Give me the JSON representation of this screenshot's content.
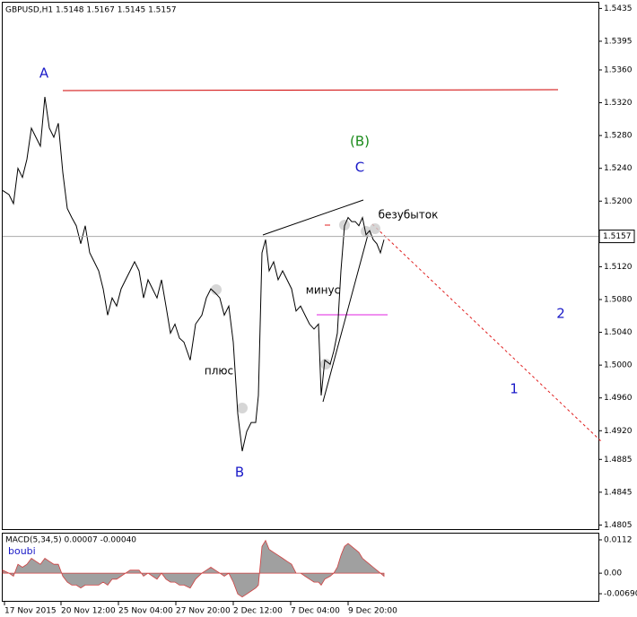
{
  "chart_data": [
    {
      "type": "line",
      "title": "GBPUSD,H1  1.5148 1.5167 1.5145 1.5157",
      "color": "#000000",
      "wave_labels": [
        "A",
        "B",
        "C",
        "(B)",
        "1",
        "2"
      ],
      "notes": [
        "плюс",
        "минус",
        "безубыток"
      ],
      "current_price": 1.5157,
      "x": [
        0,
        7,
        12,
        17,
        22,
        27,
        32,
        37,
        42,
        47,
        52,
        57,
        62,
        67,
        72,
        77,
        82,
        87,
        92,
        97,
        102,
        107,
        112,
        117,
        122,
        127,
        132,
        137,
        142,
        147,
        152,
        157,
        162,
        167,
        172,
        177,
        182,
        187,
        192,
        197,
        202,
        209,
        215,
        222,
        227,
        232,
        237,
        242,
        247,
        252,
        257,
        262,
        267,
        272,
        277,
        282,
        285,
        289,
        293,
        297,
        302,
        307,
        312,
        317,
        322,
        327,
        332,
        337,
        342,
        347,
        352,
        355,
        359,
        365,
        369,
        373,
        377,
        381,
        385,
        389,
        393,
        397,
        401,
        405,
        409,
        413,
        417,
        421,
        425
      ],
      "values": [
        1.5213,
        1.5208,
        1.5197,
        1.524,
        1.5229,
        1.5251,
        1.5289,
        1.5278,
        1.5267,
        1.5327,
        1.5289,
        1.5278,
        1.5295,
        1.5235,
        1.5191,
        1.518,
        1.517,
        1.5148,
        1.517,
        1.5137,
        1.5126,
        1.5115,
        1.5093,
        1.5061,
        1.5082,
        1.5072,
        1.5093,
        1.5104,
        1.5115,
        1.5126,
        1.5115,
        1.5082,
        1.5104,
        1.5093,
        1.5082,
        1.5104,
        1.5072,
        1.5039,
        1.505,
        1.5033,
        1.5028,
        1.5006,
        1.505,
        1.5061,
        1.5082,
        1.5093,
        1.5088,
        1.5082,
        1.5061,
        1.5072,
        1.5028,
        1.4941,
        1.4895,
        1.4919,
        1.493,
        1.493,
        1.4963,
        1.5137,
        1.5153,
        1.5115,
        1.5126,
        1.5104,
        1.5115,
        1.5104,
        1.5093,
        1.5066,
        1.5072,
        1.5061,
        1.505,
        1.5044,
        1.505,
        1.4963,
        1.5006,
        1.5001,
        1.5017,
        1.5039,
        1.5115,
        1.517,
        1.518,
        1.5175,
        1.5175,
        1.517,
        1.518,
        1.5159,
        1.5164,
        1.5153,
        1.5148,
        1.5137,
        1.5153
      ],
      "xlim": [
        0,
        664
      ],
      "ylim": [
        1.48,
        1.5442
      ],
      "yticks": [
        {
          "value": 1.5435,
          "label": "1.5435"
        },
        {
          "value": 1.5395,
          "label": "1.5395"
        },
        {
          "value": 1.536,
          "label": "1.5360"
        },
        {
          "value": 1.532,
          "label": "1.5320"
        },
        {
          "value": 1.528,
          "label": "1.5280"
        },
        {
          "value": 1.524,
          "label": "1.5240"
        },
        {
          "value": 1.52,
          "label": "1.5200"
        },
        {
          "value": 1.516,
          "label": "1.5160"
        },
        {
          "value": 1.512,
          "label": "1.5120"
        },
        {
          "value": 1.508,
          "label": "1.5080"
        },
        {
          "value": 1.504,
          "label": "1.5040"
        },
        {
          "value": 1.5,
          "label": "1.5000"
        },
        {
          "value": 1.496,
          "label": "1.4960"
        },
        {
          "value": 1.492,
          "label": "1.4920"
        },
        {
          "value": 1.4885,
          "label": "1.4885"
        },
        {
          "value": 1.4845,
          "label": "1.4845"
        },
        {
          "value": 1.4805,
          "label": "1.4805"
        }
      ]
    },
    {
      "type": "area",
      "title": "MACD(5,34,5) 0.00007 -0.00040",
      "subtitle": "boubi",
      "color": "#a0a0a0",
      "x": [
        0,
        7,
        12,
        17,
        22,
        27,
        32,
        37,
        42,
        47,
        52,
        57,
        62,
        67,
        72,
        77,
        82,
        87,
        92,
        97,
        102,
        107,
        112,
        117,
        122,
        127,
        132,
        137,
        142,
        147,
        152,
        157,
        162,
        167,
        172,
        177,
        182,
        187,
        192,
        197,
        202,
        209,
        215,
        222,
        227,
        232,
        237,
        242,
        247,
        252,
        257,
        262,
        267,
        272,
        277,
        282,
        285,
        289,
        293,
        297,
        302,
        307,
        312,
        317,
        322,
        327,
        332,
        337,
        342,
        347,
        352,
        355,
        359,
        365,
        369,
        373,
        377,
        381,
        385,
        389,
        393,
        397,
        401,
        405,
        409,
        413,
        417,
        421,
        425
      ],
      "values": [
        0.001,
        0.0,
        -0.001,
        0.003,
        0.002,
        0.003,
        0.005,
        0.004,
        0.003,
        0.005,
        0.004,
        0.003,
        0.003,
        -0.001,
        -0.003,
        -0.004,
        -0.004,
        -0.005,
        -0.004,
        -0.004,
        -0.004,
        -0.004,
        -0.003,
        -0.004,
        -0.002,
        -0.002,
        -0.001,
        0.0,
        0.001,
        0.001,
        0.001,
        -0.001,
        0.0,
        -0.001,
        -0.002,
        0.0,
        -0.002,
        -0.003,
        -0.003,
        -0.004,
        -0.004,
        -0.005,
        -0.002,
        0.0,
        0.001,
        0.002,
        0.001,
        0.0,
        -0.001,
        0.0,
        -0.003,
        -0.007,
        -0.008,
        -0.007,
        -0.006,
        -0.005,
        -0.004,
        0.009,
        0.011,
        0.008,
        0.007,
        0.006,
        0.005,
        0.004,
        0.003,
        0.0,
        0.0,
        -0.001,
        -0.002,
        -0.003,
        -0.003,
        -0.004,
        -0.002,
        -0.001,
        0.0,
        0.002,
        0.006,
        0.009,
        0.01,
        0.009,
        0.008,
        0.007,
        0.005,
        0.004,
        0.003,
        0.002,
        0.001,
        0.0,
        -0.001
      ],
      "xlim": [
        0,
        664
      ],
      "ylim": [
        -0.0093,
        0.0133
      ],
      "yticks": [
        0.0112,
        {
          "value": 0,
          "label": "0.00"
        },
        {
          "value": -0.0069,
          "label": "-0.00690"
        }
      ],
      "xticks": [
        {
          "value": 2,
          "label": "17 Nov 2015"
        },
        {
          "value": 65,
          "label": "20 Nov 12:00"
        },
        {
          "value": 129,
          "label": "25 Nov 04:00"
        },
        {
          "value": 193,
          "label": "27 Nov 20:00"
        },
        {
          "value": 257,
          "label": "2 Dec 12:00"
        },
        {
          "value": 321,
          "label": "7 Dec 04:00"
        },
        {
          "value": 385,
          "label": "9 Dec 20:00"
        }
      ]
    }
  ]
}
